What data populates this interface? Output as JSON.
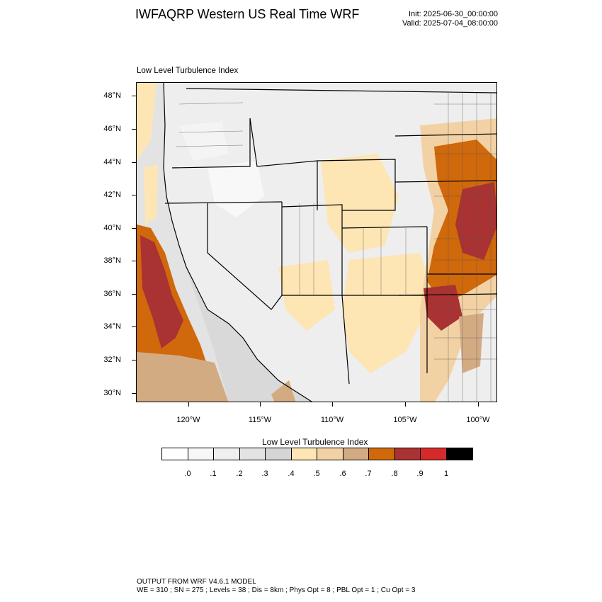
{
  "header": {
    "title": "IWFAQRP Western US Real Time WRF",
    "init": "Init: 2025-06-30_00:00:00",
    "valid": "Valid: 2025-07-04_08:00:00"
  },
  "map": {
    "field_name": "Low Level Turbulence Index",
    "lat_labels": [
      "48°N",
      "46°N",
      "44°N",
      "42°N",
      "40°N",
      "38°N",
      "36°N",
      "34°N",
      "32°N",
      "30°N"
    ],
    "lon_labels": [
      "120°W",
      "115°W",
      "110°W",
      "105°W",
      "100°W"
    ]
  },
  "colorbar": {
    "title": "Low Level Turbulence Index",
    "colors": [
      "#ffffff",
      "#f7f7f7",
      "#efefef",
      "#e3e3e3",
      "#d5d5d5",
      "#fde5b4",
      "#f2d2a4",
      "#d3ab83",
      "#d0680c",
      "#a93232",
      "#d42a2a",
      "#000000"
    ],
    "labels": [
      ".0",
      ".1",
      ".2",
      ".3",
      ".4",
      ".5",
      ".6",
      ".7",
      ".8",
      ".9",
      "1"
    ]
  },
  "footer": {
    "line1": "OUTPUT FROM WRF V4.6.1 MODEL",
    "line2": "WE = 310 ; SN = 275 ; Levels = 38 ; Dis = 8km ; Phys Opt = 8 ; PBL Opt = 1 ; Cu Opt = 3"
  }
}
